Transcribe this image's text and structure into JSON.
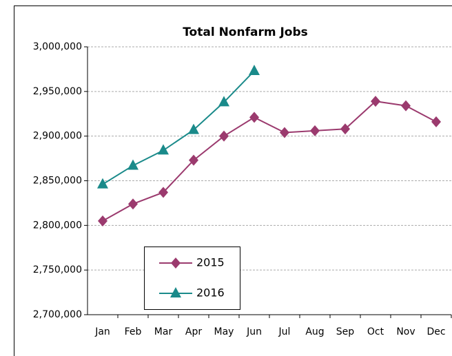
{
  "chart_data": {
    "type": "line",
    "title": "Total Nonfarm Jobs",
    "categories": [
      "Jan",
      "Feb",
      "Mar",
      "Apr",
      "May",
      "Jun",
      "Jul",
      "Aug",
      "Sep",
      "Oct",
      "Nov",
      "Dec"
    ],
    "series": [
      {
        "name": "2015",
        "color": "#9b3a6e",
        "marker": "diamond",
        "values": [
          2805000,
          2824000,
          2837000,
          2873000,
          2900000,
          2921000,
          2904000,
          2906000,
          2908000,
          2939000,
          2934000,
          2916000
        ]
      },
      {
        "name": "2016",
        "color": "#1a8a8a",
        "marker": "triangle",
        "values": [
          2846000,
          2867000,
          2884000,
          2907000,
          2938000,
          2973000,
          null,
          null,
          null,
          null,
          null,
          null
        ]
      }
    ],
    "ylim": [
      2700000,
      3000000
    ],
    "yticks": [
      {
        "value": 2700000,
        "label": "2,700,000"
      },
      {
        "value": 2750000,
        "label": "2,750,000"
      },
      {
        "value": 2800000,
        "label": "2,800,000"
      },
      {
        "value": 2850000,
        "label": "2,850,000"
      },
      {
        "value": 2900000,
        "label": "2,900,000"
      },
      {
        "value": 2950000,
        "label": "2,950,000"
      },
      {
        "value": 3000000,
        "label": "3,000,000"
      }
    ],
    "grid": true,
    "legend": "lower left"
  }
}
